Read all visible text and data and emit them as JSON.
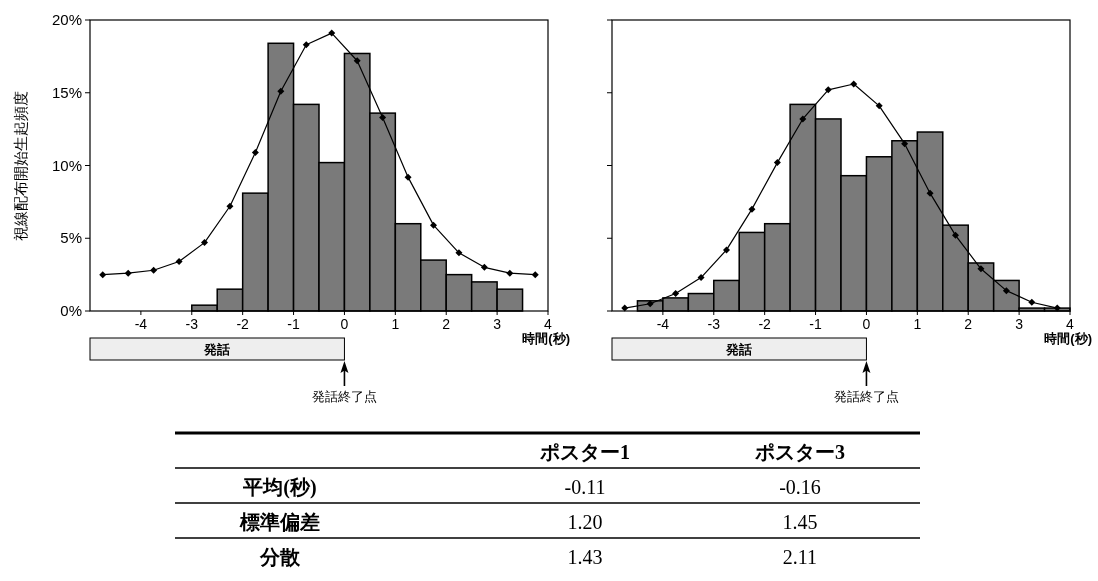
{
  "chart_data": [
    {
      "type": "histogram",
      "ylabel": "視線配布開始生起頻度",
      "xlabel": "時間(秒)",
      "color": "#7a7a7a",
      "bins": [
        -3,
        -2.5,
        -2,
        -1.5,
        -1,
        -0.5,
        0,
        0.5,
        1,
        1.5,
        2,
        2.5,
        3,
        3.5
      ],
      "values": [
        0.4,
        1.5,
        8.1,
        18.4,
        14.2,
        10.2,
        17.7,
        13.6,
        6.0,
        3.5,
        2.5,
        2.0,
        1.5
      ],
      "series": [
        {
          "type": "line",
          "color": "#000000",
          "x": [
            -4.75,
            -4.25,
            -3.75,
            -3.25,
            -2.75,
            -2.25,
            -1.75,
            -1.25,
            -0.75,
            -0.25,
            0.25,
            0.75,
            1.25,
            1.75,
            2.25,
            2.75,
            3.25,
            3.75
          ],
          "values": [
            2.5,
            2.6,
            2.8,
            3.4,
            4.7,
            7.2,
            10.9,
            15.1,
            18.3,
            19.1,
            17.2,
            13.3,
            9.2,
            5.9,
            4.0,
            3.0,
            2.6,
            2.5
          ]
        }
      ],
      "marker": "diamond",
      "xlim": [
        -5,
        4
      ],
      "xticks": [
        -4,
        -3,
        -2,
        -1,
        0,
        1,
        2,
        3,
        4
      ],
      "ylim": [
        0,
        20
      ],
      "yticks": [
        {
          "value": 0,
          "label": "0%"
        },
        {
          "value": 5,
          "label": "5%"
        },
        {
          "value": 10,
          "label": "10%"
        },
        {
          "value": 15,
          "label": "15%"
        },
        {
          "value": 20,
          "label": "20%"
        }
      ],
      "annotations": [
        "発話",
        "発話終了点"
      ]
    },
    {
      "type": "histogram",
      "xlabel": "時間(秒)",
      "color": "#7a7a7a",
      "bins": [
        -4.5,
        -4,
        -3.5,
        -3,
        -2.5,
        -2,
        -1.5,
        -1,
        -0.5,
        0,
        0.5,
        1,
        1.5,
        2,
        2.5,
        3,
        3.5,
        4
      ],
      "values": [
        0.7,
        0.9,
        1.2,
        2.1,
        5.4,
        6.0,
        14.2,
        13.2,
        9.3,
        10.6,
        11.7,
        12.3,
        5.9,
        3.3,
        2.1,
        0.2,
        0.2
      ],
      "series": [
        {
          "type": "line",
          "color": "#000000",
          "x": [
            -4.75,
            -4.25,
            -3.75,
            -3.25,
            -2.75,
            -2.25,
            -1.75,
            -1.25,
            -0.75,
            -0.25,
            0.25,
            0.75,
            1.25,
            1.75,
            2.25,
            2.75,
            3.25,
            3.75
          ],
          "values": [
            0.2,
            0.5,
            1.2,
            2.3,
            4.2,
            7.0,
            10.2,
            13.2,
            15.2,
            15.6,
            14.1,
            11.5,
            8.1,
            5.2,
            2.9,
            1.4,
            0.6,
            0.2
          ]
        }
      ],
      "marker": "diamond",
      "xlim": [
        -5,
        4
      ],
      "xticks": [
        -4,
        -3,
        -2,
        -1,
        0,
        1,
        2,
        3,
        4
      ],
      "ylim": [
        0,
        20
      ],
      "yticks": [
        0,
        5,
        10,
        15,
        20
      ],
      "tick_labels": "x",
      "annotations": [
        "発話",
        "発話終了点"
      ]
    },
    {
      "type": "other",
      "categories": [
        "ポスター1",
        "ポスター3"
      ],
      "y_categories": [
        "平均(秒)",
        "標準偏差",
        "分散"
      ],
      "cell_labels": [
        [
          "-0.11",
          "-0.16"
        ],
        [
          "1.20",
          "1.45"
        ],
        [
          "1.43",
          "2.11"
        ]
      ]
    }
  ]
}
